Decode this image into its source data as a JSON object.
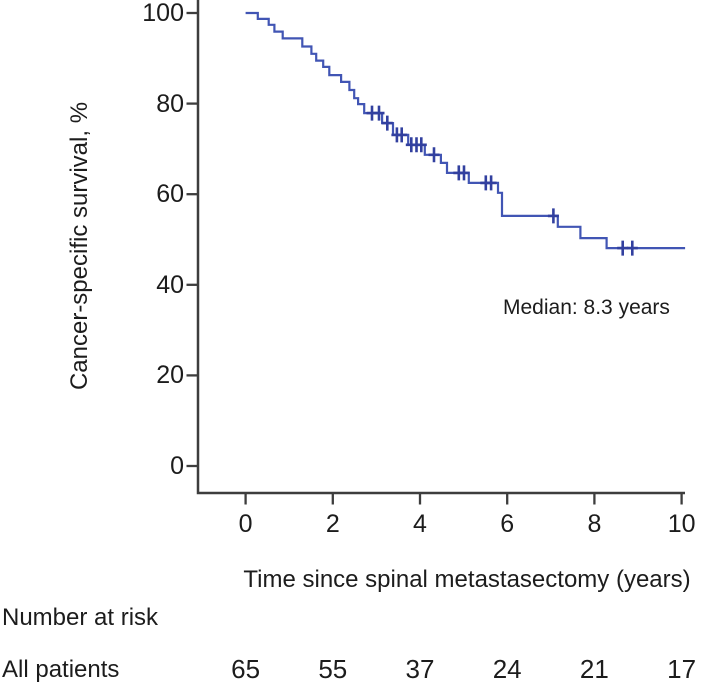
{
  "figure": {
    "y_axis_title": "Cancer-specific survival, %",
    "x_axis_title": "Time since spinal metastasectomy (years)",
    "median_annotation": "Median: 8.3 years",
    "risk_header": "Number at risk",
    "risk_row_label": "All patients"
  },
  "colors": {
    "curve": "#4155b4",
    "censor": "#32409f",
    "axis": "#3d3d3d",
    "text": "#1c1c1c"
  },
  "chart_data": {
    "type": "line",
    "variant": "kaplan-meier-step",
    "title": "",
    "xlabel": "Time since spinal metastasectomy (years)",
    "ylabel": "Cancer-specific survival, %",
    "xlim": [
      0,
      10.1
    ],
    "ylim": [
      0,
      100
    ],
    "x_ticks": [
      0,
      2,
      4,
      6,
      8,
      10
    ],
    "y_ticks": [
      100,
      80,
      60,
      40,
      20,
      0
    ],
    "grid": false,
    "legend": "none",
    "annotations": [
      {
        "text": "Median: 8.3 years",
        "x": 5.9,
        "y": 35
      }
    ],
    "series": [
      {
        "name": "All patients",
        "steps": [
          [
            0.0,
            100.0
          ],
          [
            0.28,
            98.7
          ],
          [
            0.53,
            97.4
          ],
          [
            0.66,
            95.9
          ],
          [
            0.85,
            94.4
          ],
          [
            1.3,
            92.6
          ],
          [
            1.51,
            91.0
          ],
          [
            1.62,
            89.5
          ],
          [
            1.78,
            88.1
          ],
          [
            1.92,
            86.3
          ],
          [
            2.19,
            84.8
          ],
          [
            2.38,
            83.0
          ],
          [
            2.49,
            81.2
          ],
          [
            2.58,
            79.9
          ],
          [
            2.72,
            77.9
          ],
          [
            3.13,
            75.7
          ],
          [
            3.38,
            73.1
          ],
          [
            3.73,
            70.9
          ],
          [
            4.11,
            68.7
          ],
          [
            4.48,
            66.9
          ],
          [
            4.62,
            64.7
          ],
          [
            5.12,
            62.5
          ],
          [
            5.79,
            60.3
          ],
          [
            5.88,
            55.2
          ],
          [
            7.16,
            52.8
          ],
          [
            7.68,
            50.3
          ],
          [
            8.28,
            48.1
          ]
        ],
        "censors": [
          [
            2.9,
            77.9
          ],
          [
            3.06,
            77.9
          ],
          [
            3.25,
            75.7
          ],
          [
            3.47,
            73.1
          ],
          [
            3.58,
            73.1
          ],
          [
            3.8,
            70.9
          ],
          [
            3.92,
            70.9
          ],
          [
            4.03,
            70.9
          ],
          [
            4.32,
            68.7
          ],
          [
            4.89,
            64.7
          ],
          [
            5.01,
            64.7
          ],
          [
            5.51,
            62.5
          ],
          [
            5.63,
            62.5
          ],
          [
            7.06,
            55.2
          ],
          [
            8.65,
            48.1
          ],
          [
            8.87,
            48.1
          ]
        ],
        "end_time": 10.08
      }
    ],
    "risk_table": {
      "header": "Number at risk",
      "times": [
        0,
        2,
        4,
        6,
        8,
        10
      ],
      "rows": [
        {
          "label": "All patients",
          "values": [
            65,
            55,
            37,
            24,
            21,
            17
          ]
        }
      ]
    }
  }
}
